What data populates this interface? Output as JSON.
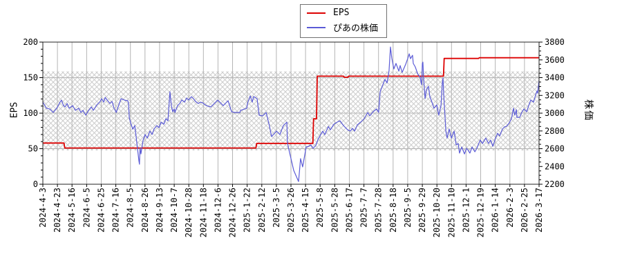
{
  "legend": {
    "items": [
      {
        "label": "EPS",
        "color": "#dd0000"
      },
      {
        "label": "ぴあの株価",
        "color": "#5a5ad6"
      }
    ]
  },
  "chart_data": {
    "type": "line",
    "title": "",
    "xlabel": "",
    "x_axis": {
      "range": [
        0,
        34
      ],
      "tick_labels": [
        "2024-4-3",
        "2024-4-23",
        "2024-5-16",
        "2024-6-5",
        "2024-6-25",
        "2024-7-16",
        "2024-8-5",
        "2024-8-26",
        "2024-9-13",
        "2024-10-7",
        "2024-10-28",
        "2024-11-18",
        "2024-12-6",
        "2024-12-26",
        "2025-1-22",
        "2025-2-12",
        "2025-3-5",
        "2025-3-26",
        "2025-4-15",
        "2025-5-8",
        "2025-5-28",
        "2025-6-17",
        "2025-7-7",
        "2025-7-28",
        "2025-8-18",
        "2025-9-5",
        "2025-9-29",
        "2025-10-20",
        "2025-11-10",
        "2025-12-1",
        "2025-12-19",
        "2026-1-14",
        "2026-2-3",
        "2026-2-25",
        "2026-3-17"
      ]
    },
    "y_axis_left": {
      "label": "EPS",
      "min": 0,
      "max": 200,
      "major_ticks": [
        0,
        50,
        100,
        150,
        200
      ],
      "minor_step": 10
    },
    "y_axis_right": {
      "label": "株価",
      "min": 2200,
      "max": 3800,
      "major_ticks": [
        2200,
        2400,
        2600,
        2800,
        3000,
        3200,
        3400,
        3600,
        3800
      ],
      "minor_step": 50
    },
    "grid": {
      "vertical": true,
      "horizontal_at_price": [
        2600,
        3000,
        3400
      ],
      "color": "#b4b4b4"
    },
    "hatch_band": {
      "price_low": 2580,
      "price_high": 3470,
      "style": "crosshatch",
      "color": "#cccccc"
    },
    "legend_position": "top-center",
    "series": [
      {
        "name": "EPS",
        "axis": "left",
        "color": "#dd0000",
        "width": 1.8,
        "style": "step",
        "points": [
          [
            0,
            58
          ],
          [
            1.45,
            58
          ],
          [
            1.5,
            51
          ],
          [
            14.6,
            51
          ],
          [
            14.65,
            57.5
          ],
          [
            18.5,
            57.5
          ],
          [
            18.55,
            92
          ],
          [
            18.75,
            92
          ],
          [
            18.8,
            152
          ],
          [
            20.6,
            152
          ],
          [
            20.65,
            150.5
          ],
          [
            20.9,
            150.5
          ],
          [
            20.95,
            152
          ],
          [
            27.45,
            152
          ],
          [
            27.5,
            177
          ],
          [
            29.85,
            177
          ],
          [
            29.9,
            178
          ],
          [
            34,
            178
          ]
        ]
      },
      {
        "name": "ぴあの株価",
        "axis": "right",
        "color": "#5a5ad6",
        "width": 1.2,
        "style": "line",
        "points": [
          [
            0,
            3124
          ],
          [
            0.25,
            3055
          ],
          [
            0.47,
            3047
          ],
          [
            0.71,
            3008
          ],
          [
            0.95,
            3055
          ],
          [
            1.18,
            3124
          ],
          [
            1.28,
            3147
          ],
          [
            1.4,
            3090
          ],
          [
            1.52,
            3070
          ],
          [
            1.66,
            3109
          ],
          [
            1.8,
            3055
          ],
          [
            2.04,
            3085
          ],
          [
            2.23,
            3032
          ],
          [
            2.46,
            3055
          ],
          [
            2.61,
            3008
          ],
          [
            2.75,
            3032
          ],
          [
            2.94,
            2977
          ],
          [
            3.08,
            3016
          ],
          [
            3.32,
            3070
          ],
          [
            3.46,
            3032
          ],
          [
            3.7,
            3093
          ],
          [
            3.93,
            3132
          ],
          [
            4.03,
            3163
          ],
          [
            4.17,
            3124
          ],
          [
            4.27,
            3178
          ],
          [
            4.41,
            3147
          ],
          [
            4.6,
            3109
          ],
          [
            4.74,
            3132
          ],
          [
            4.88,
            3055
          ],
          [
            5.03,
            3008
          ],
          [
            5.2,
            3090
          ],
          [
            5.36,
            3163
          ],
          [
            5.6,
            3147
          ],
          [
            5.82,
            3140
          ],
          [
            5.87,
            3109
          ],
          [
            5.92,
            2950
          ],
          [
            6.02,
            2890
          ],
          [
            6.16,
            2820
          ],
          [
            6.3,
            2860
          ],
          [
            6.44,
            2666
          ],
          [
            6.58,
            2464
          ],
          [
            6.62,
            2425
          ],
          [
            6.66,
            2610
          ],
          [
            6.72,
            2541
          ],
          [
            6.87,
            2697
          ],
          [
            7.01,
            2759
          ],
          [
            7.15,
            2720
          ],
          [
            7.34,
            2798
          ],
          [
            7.48,
            2759
          ],
          [
            7.62,
            2821
          ],
          [
            7.81,
            2860
          ],
          [
            7.96,
            2837
          ],
          [
            8.1,
            2899
          ],
          [
            8.29,
            2876
          ],
          [
            8.43,
            2938
          ],
          [
            8.57,
            2914
          ],
          [
            8.71,
            3241
          ],
          [
            8.81,
            3085
          ],
          [
            8.9,
            3016
          ],
          [
            9.0,
            3047
          ],
          [
            9.05,
            3008
          ],
          [
            9.23,
            3085
          ],
          [
            9.38,
            3109
          ],
          [
            9.52,
            3148
          ],
          [
            9.71,
            3124
          ],
          [
            9.85,
            3171
          ],
          [
            9.99,
            3148
          ],
          [
            10.18,
            3186
          ],
          [
            10.32,
            3163
          ],
          [
            10.46,
            3132
          ],
          [
            10.65,
            3109
          ],
          [
            10.8,
            3124
          ],
          [
            10.94,
            3117
          ],
          [
            11.2,
            3085
          ],
          [
            11.51,
            3070
          ],
          [
            11.98,
            3147
          ],
          [
            12.36,
            3085
          ],
          [
            12.69,
            3140
          ],
          [
            12.93,
            3016
          ],
          [
            13.16,
            3008
          ],
          [
            13.5,
            3008
          ],
          [
            13.54,
            3030
          ],
          [
            13.97,
            3055
          ],
          [
            14.02,
            3110
          ],
          [
            14.21,
            3194
          ],
          [
            14.35,
            3124
          ],
          [
            14.44,
            3187
          ],
          [
            14.68,
            3163
          ],
          [
            14.82,
            2977
          ],
          [
            15.06,
            2969
          ],
          [
            15.3,
            3008
          ],
          [
            15.53,
            2852
          ],
          [
            15.67,
            2736
          ],
          [
            16.01,
            2798
          ],
          [
            16.24,
            2759
          ],
          [
            16.48,
            2860
          ],
          [
            16.72,
            2899
          ],
          [
            16.76,
            2666
          ],
          [
            16.86,
            2589
          ],
          [
            17.19,
            2355
          ],
          [
            17.52,
            2230
          ],
          [
            17.66,
            2488
          ],
          [
            17.8,
            2395
          ],
          [
            18.04,
            2619
          ],
          [
            18.23,
            2627
          ],
          [
            18.37,
            2643
          ],
          [
            18.51,
            2604
          ],
          [
            18.7,
            2635
          ],
          [
            18.85,
            2704
          ],
          [
            19.18,
            2797
          ],
          [
            19.32,
            2758
          ],
          [
            19.56,
            2851
          ],
          [
            19.7,
            2812
          ],
          [
            19.94,
            2876
          ],
          [
            20.17,
            2899
          ],
          [
            20.36,
            2914
          ],
          [
            20.6,
            2860
          ],
          [
            20.88,
            2813
          ],
          [
            21.07,
            2798
          ],
          [
            21.22,
            2829
          ],
          [
            21.36,
            2798
          ],
          [
            21.55,
            2868
          ],
          [
            21.78,
            2899
          ],
          [
            22.02,
            2938
          ],
          [
            22.26,
            3008
          ],
          [
            22.4,
            2969
          ],
          [
            22.63,
            3016
          ],
          [
            22.87,
            3047
          ],
          [
            23.01,
            3008
          ],
          [
            23.11,
            3240
          ],
          [
            23.25,
            3300
          ],
          [
            23.44,
            3380
          ],
          [
            23.58,
            3340
          ],
          [
            23.72,
            3475
          ],
          [
            23.82,
            3745
          ],
          [
            23.91,
            3620
          ],
          [
            24.05,
            3497
          ],
          [
            24.2,
            3560
          ],
          [
            24.39,
            3473
          ],
          [
            24.48,
            3536
          ],
          [
            24.62,
            3458
          ],
          [
            24.86,
            3551
          ],
          [
            25.0,
            3613
          ],
          [
            25.1,
            3668
          ],
          [
            25.19,
            3613
          ],
          [
            25.33,
            3652
          ],
          [
            25.38,
            3559
          ],
          [
            25.52,
            3520
          ],
          [
            25.62,
            3473
          ],
          [
            25.71,
            3435
          ],
          [
            25.85,
            3404
          ],
          [
            25.95,
            3319
          ],
          [
            26.0,
            3560
          ],
          [
            26.04,
            3575
          ],
          [
            26.09,
            3380
          ],
          [
            26.19,
            3163
          ],
          [
            26.28,
            3264
          ],
          [
            26.42,
            3303
          ],
          [
            26.52,
            3186
          ],
          [
            26.66,
            3124
          ],
          [
            26.8,
            3055
          ],
          [
            26.99,
            3093
          ],
          [
            27.13,
            2977
          ],
          [
            27.28,
            3085
          ],
          [
            27.37,
            3340
          ],
          [
            27.42,
            3395
          ],
          [
            27.46,
            3225
          ],
          [
            27.56,
            2953
          ],
          [
            27.61,
            2798
          ],
          [
            27.7,
            2720
          ],
          [
            27.84,
            2821
          ],
          [
            27.99,
            2720
          ],
          [
            28.18,
            2798
          ],
          [
            28.32,
            2643
          ],
          [
            28.46,
            2658
          ],
          [
            28.55,
            2550
          ],
          [
            28.7,
            2619
          ],
          [
            28.89,
            2541
          ],
          [
            29.03,
            2604
          ],
          [
            29.12,
            2588
          ],
          [
            29.26,
            2550
          ],
          [
            29.41,
            2619
          ],
          [
            29.6,
            2565
          ],
          [
            29.74,
            2604
          ],
          [
            29.83,
            2643
          ],
          [
            29.97,
            2697
          ],
          [
            30.12,
            2658
          ],
          [
            30.21,
            2682
          ],
          [
            30.35,
            2720
          ],
          [
            30.54,
            2658
          ],
          [
            30.68,
            2697
          ],
          [
            30.83,
            2627
          ],
          [
            31.02,
            2720
          ],
          [
            31.16,
            2774
          ],
          [
            31.3,
            2743
          ],
          [
            31.49,
            2821
          ],
          [
            31.63,
            2845
          ],
          [
            31.77,
            2852
          ],
          [
            31.96,
            2891
          ],
          [
            32.11,
            2938
          ],
          [
            32.25,
            3055
          ],
          [
            32.34,
            2977
          ],
          [
            32.44,
            3040
          ],
          [
            32.48,
            2953
          ],
          [
            32.67,
            2953
          ],
          [
            32.81,
            3008
          ],
          [
            32.96,
            3047
          ],
          [
            33.15,
            3016
          ],
          [
            33.29,
            3085
          ],
          [
            33.43,
            3148
          ],
          [
            33.62,
            3124
          ],
          [
            33.76,
            3202
          ],
          [
            33.86,
            3249
          ],
          [
            33.9,
            3225
          ],
          [
            34.0,
            3365
          ]
        ]
      }
    ]
  }
}
